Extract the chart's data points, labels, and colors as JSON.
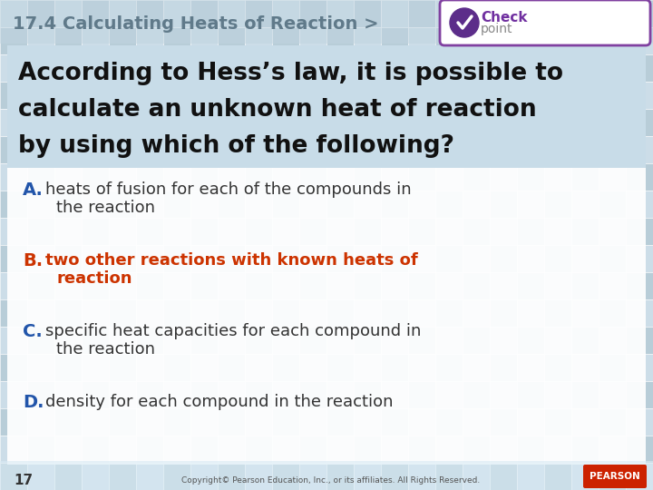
{
  "title_text": "17.4 Calculating Heats of Reaction >",
  "title_color": "#607a8a",
  "title_fontsize": 14,
  "bg_tile_light": "#ccdde8",
  "bg_tile_dark": "#b8cdd8",
  "white_area_color": "#f0f6fa",
  "question_bg": "#c8dce8",
  "question_line1": "According to Hess’s law, it is possible to",
  "question_line2": "calculate an unknown heat of reaction",
  "question_line3": "by using which of the following?",
  "question_color": "#111111",
  "question_fontsize": 19,
  "answers": [
    {
      "letter": "A.",
      "letter_color": "#2255aa",
      "line1": "heats of fusion for each of the compounds in",
      "line2": "the reaction",
      "text_color": "#333333",
      "bold": false,
      "fontsize": 13
    },
    {
      "letter": "B.",
      "letter_color": "#cc3300",
      "line1": "two other reactions with known heats of",
      "line2": "reaction",
      "text_color": "#cc3300",
      "bold": true,
      "fontsize": 13
    },
    {
      "letter": "C.",
      "letter_color": "#2255aa",
      "line1": "specific heat capacities for each compound in",
      "line2": "the reaction",
      "text_color": "#333333",
      "bold": false,
      "fontsize": 13
    },
    {
      "letter": "D.",
      "letter_color": "#2255aa",
      "line1": "density for each compound in the reaction",
      "line2": "",
      "text_color": "#333333",
      "bold": false,
      "fontsize": 13
    }
  ],
  "footer_number": "17",
  "footer_copyright": "Copyright© Pearson Education, Inc., or its affiliates. All Rights Reserved.",
  "checkpoint_color": "#7030a0",
  "tile_size": 30
}
